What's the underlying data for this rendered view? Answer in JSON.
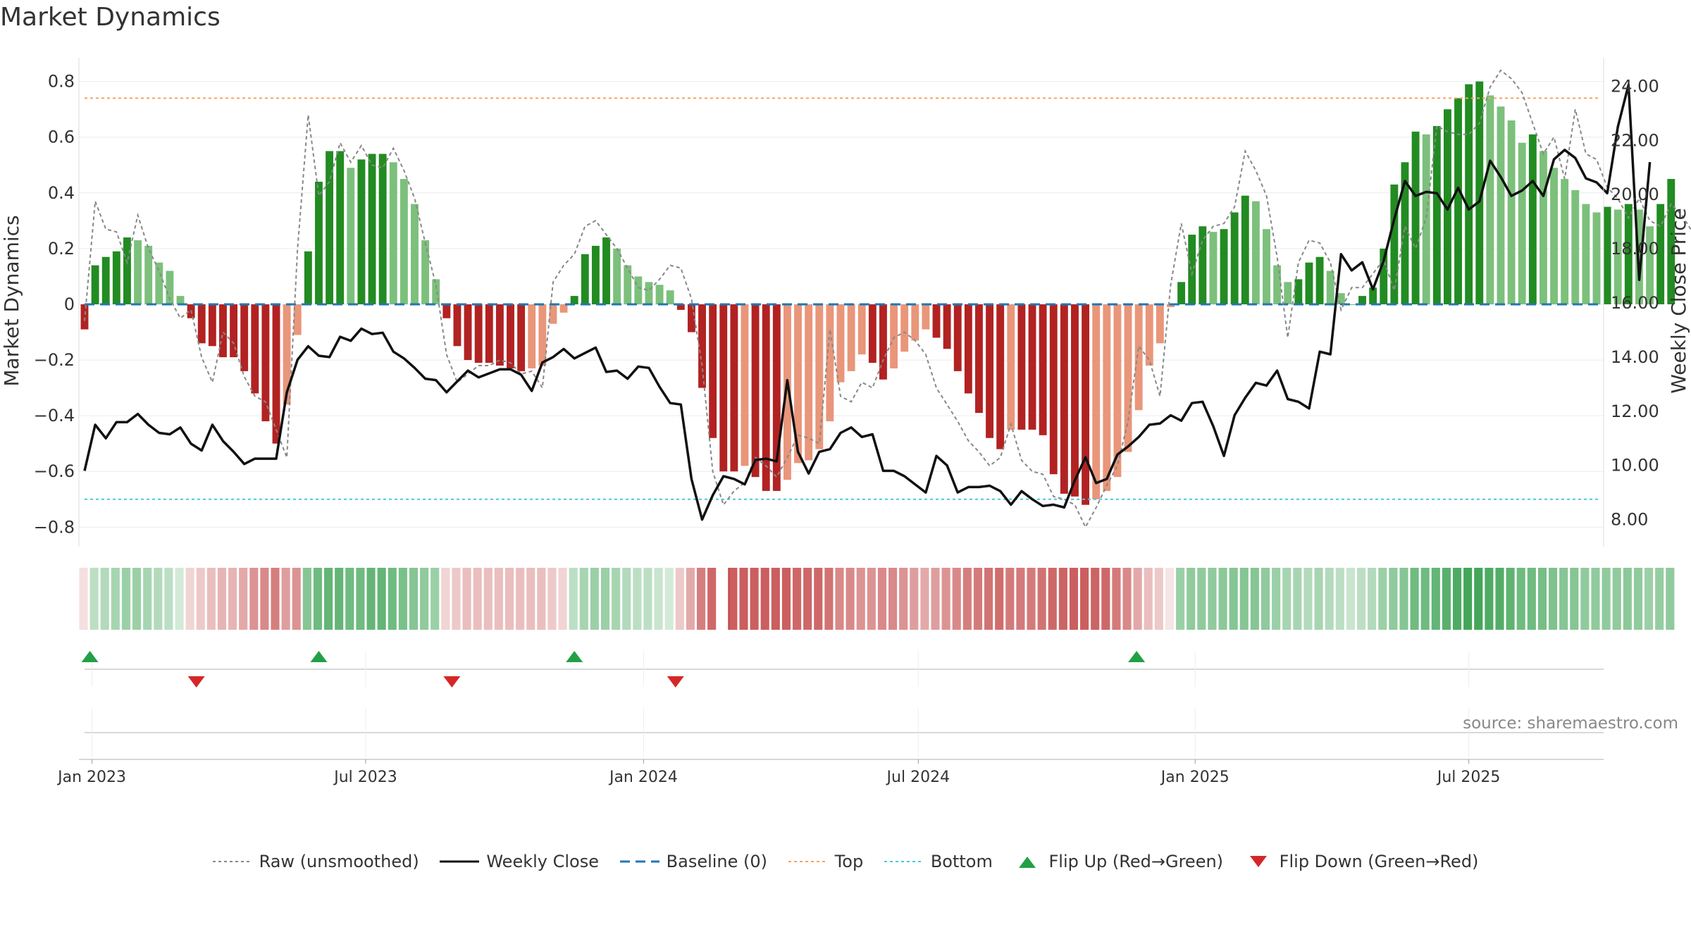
{
  "chart_data": {
    "type": "bar",
    "title": "Market Dynamics",
    "ylabel_left": "Market Dynamics",
    "ylabel_right": "Weekly Close Price",
    "y_left_range": [
      -0.87,
      0.88
    ],
    "y_right_range": [
      7.0,
      25.0
    ],
    "y_left_ticks": [
      "0.8",
      "0.6",
      "0.4",
      "0.2",
      "0",
      "−0.2",
      "−0.4",
      "−0.6",
      "−0.8"
    ],
    "y_right_ticks": [
      "24.00",
      "22.00",
      "20.00",
      "18.00",
      "16.00",
      "14.00",
      "12.00",
      "10.00",
      "8.00"
    ],
    "x_tick_labels": [
      "Jan 2023",
      "Jul 2023",
      "Jan 2024",
      "Jul 2024",
      "Jan 2025",
      "Jul 2025"
    ],
    "x_tick_positions_weeks": [
      0.7,
      26.4,
      52.5,
      78.3,
      104.3,
      130.0
    ],
    "top_level": 0.74,
    "bottom_level": -0.7,
    "baseline": 0,
    "weeks": 143,
    "series": [
      {
        "name": "Market Dynamics",
        "kind": "bar",
        "values": [
          -0.09,
          0.14,
          0.17,
          0.19,
          0.24,
          0.23,
          0.21,
          0.15,
          0.12,
          0.03,
          -0.05,
          -0.14,
          -0.15,
          -0.19,
          -0.19,
          -0.24,
          -0.32,
          -0.42,
          -0.5,
          -0.36,
          -0.11,
          0.19,
          0.44,
          0.55,
          0.55,
          0.49,
          0.52,
          0.54,
          0.54,
          0.51,
          0.45,
          0.36,
          0.23,
          0.09,
          -0.05,
          -0.15,
          -0.2,
          -0.21,
          -0.21,
          -0.22,
          -0.23,
          -0.24,
          -0.23,
          -0.22,
          -0.07,
          -0.03,
          0.03,
          0.18,
          0.21,
          0.24,
          0.2,
          0.14,
          0.1,
          0.08,
          0.07,
          0.05,
          -0.02,
          -0.1,
          -0.3,
          -0.48,
          -0.6,
          -0.6,
          -0.58,
          -0.62,
          -0.67,
          -0.67,
          -0.63,
          -0.57,
          -0.56,
          -0.52,
          -0.42,
          -0.28,
          -0.24,
          -0.18,
          -0.21,
          -0.27,
          -0.23,
          -0.17,
          -0.13,
          -0.09,
          -0.12,
          -0.16,
          -0.24,
          -0.32,
          -0.39,
          -0.48,
          -0.52,
          -0.45,
          -0.45,
          -0.45,
          -0.47,
          -0.61,
          -0.68,
          -0.69,
          -0.72,
          -0.7,
          -0.67,
          -0.62,
          -0.53,
          -0.38,
          -0.22,
          -0.14,
          -0.01,
          0.08,
          0.25,
          0.28,
          0.26,
          0.27,
          0.33,
          0.39,
          0.37,
          0.27,
          0.14,
          0.08,
          0.09,
          0.15,
          0.17,
          0.12,
          0.04,
          0.0,
          0.03,
          0.06,
          0.2,
          0.43,
          0.51,
          0.62,
          0.61,
          0.64,
          0.7,
          0.74,
          0.79,
          0.8,
          0.75,
          0.71,
          0.66,
          0.58,
          0.61,
          0.55,
          0.49,
          0.45,
          0.41,
          0.36,
          0.33,
          0.35,
          0.34,
          0.36,
          0.34,
          0.28,
          0.36,
          0.45
        ]
      },
      {
        "name": "Raw (unsmoothed)",
        "kind": "line",
        "values": [
          -0.06,
          0.37,
          0.27,
          0.26,
          0.15,
          0.32,
          0.2,
          0.12,
          0.02,
          -0.05,
          -0.02,
          -0.19,
          -0.28,
          -0.1,
          -0.14,
          -0.26,
          -0.33,
          -0.35,
          -0.45,
          -0.55,
          0.2,
          0.68,
          0.39,
          0.44,
          0.58,
          0.51,
          0.57,
          0.5,
          0.49,
          0.56,
          0.48,
          0.38,
          0.22,
          0.07,
          -0.18,
          -0.28,
          -0.25,
          -0.22,
          -0.22,
          -0.2,
          -0.21,
          -0.25,
          -0.24,
          -0.3,
          0.08,
          0.14,
          0.18,
          0.28,
          0.3,
          0.25,
          0.2,
          0.13,
          0.06,
          0.05,
          0.09,
          0.14,
          0.13,
          0.02,
          -0.22,
          -0.6,
          -0.72,
          -0.67,
          -0.64,
          -0.55,
          -0.58,
          -0.62,
          -0.55,
          -0.47,
          -0.48,
          -0.5,
          -0.09,
          -0.33,
          -0.35,
          -0.28,
          -0.3,
          -0.2,
          -0.12,
          -0.1,
          -0.13,
          -0.18,
          -0.3,
          -0.36,
          -0.42,
          -0.49,
          -0.53,
          -0.58,
          -0.55,
          -0.43,
          -0.56,
          -0.6,
          -0.61,
          -0.69,
          -0.7,
          -0.72,
          -0.8,
          -0.73,
          -0.65,
          -0.58,
          -0.42,
          -0.15,
          -0.2,
          -0.33,
          0.07,
          0.29,
          0.11,
          0.23,
          0.28,
          0.29,
          0.35,
          0.55,
          0.48,
          0.39,
          0.17,
          -0.12,
          0.15,
          0.23,
          0.22,
          0.15,
          -0.02,
          0.06,
          0.06,
          0.11,
          0.16,
          0.05,
          0.28,
          0.2,
          0.31,
          0.64,
          0.62,
          0.61,
          0.61,
          0.65,
          0.78,
          0.84,
          0.81,
          0.76,
          0.65,
          0.54,
          0.6,
          0.45,
          0.7,
          0.54,
          0.52,
          0.42,
          0.38,
          0.31,
          0.38,
          0.3,
          0.28,
          0.36,
          0.32,
          0.26,
          0.35,
          0.72
        ]
      },
      {
        "name": "Weekly Close",
        "kind": "line",
        "axis": "right",
        "values": [
          9.8,
          11.5,
          11.0,
          11.6,
          11.6,
          11.9,
          11.5,
          11.2,
          11.15,
          11.4,
          10.8,
          10.55,
          11.5,
          10.9,
          10.5,
          10.05,
          10.25,
          10.25,
          10.25,
          12.7,
          13.9,
          14.4,
          14.05,
          14.0,
          14.75,
          14.6,
          15.05,
          14.85,
          14.9,
          14.2,
          13.95,
          13.6,
          13.2,
          13.15,
          12.7,
          13.1,
          13.5,
          13.25,
          13.4,
          13.55,
          13.55,
          13.35,
          12.75,
          13.8,
          14.0,
          14.3,
          13.95,
          14.15,
          14.35,
          13.45,
          13.5,
          13.2,
          13.65,
          13.6,
          12.9,
          12.3,
          12.25,
          9.5,
          8.0,
          8.9,
          9.6,
          9.5,
          9.3,
          10.2,
          10.25,
          10.15,
          13.15,
          10.5,
          9.7,
          10.5,
          10.6,
          11.2,
          11.4,
          11.05,
          11.15,
          9.8,
          9.8,
          9.6,
          9.3,
          9.0,
          10.35,
          10.0,
          9.0,
          9.2,
          9.2,
          9.25,
          9.05,
          8.55,
          9.05,
          8.75,
          8.5,
          8.55,
          8.45,
          9.45,
          10.3,
          9.35,
          9.5,
          10.4,
          10.7,
          11.05,
          11.5,
          11.55,
          11.85,
          11.65,
          12.3,
          12.35,
          11.45,
          10.35,
          11.85,
          12.5,
          13.05,
          12.95,
          13.5,
          12.45,
          12.35,
          12.1,
          14.2,
          14.1,
          17.8,
          17.2,
          17.5,
          16.5,
          17.55,
          19.1,
          20.5,
          19.95,
          20.1,
          20.05,
          19.45,
          20.25,
          19.45,
          19.75,
          21.25,
          20.65,
          19.95,
          20.15,
          20.5,
          19.95,
          21.3,
          21.65,
          21.35,
          20.6,
          20.45,
          20.05,
          22.5,
          24.05,
          16.85,
          21.2
        ]
      }
    ],
    "color_band": {
      "name": "regime strip",
      "intensities": [
        0.15,
        0.3,
        0.35,
        0.4,
        0.45,
        0.45,
        0.4,
        0.35,
        0.3,
        0.2,
        0.2,
        0.25,
        0.3,
        0.35,
        0.35,
        0.4,
        0.5,
        0.55,
        0.6,
        0.45,
        0.5,
        0.55,
        0.65,
        0.7,
        0.7,
        0.65,
        0.65,
        0.7,
        0.7,
        0.65,
        0.6,
        0.55,
        0.5,
        0.45,
        0.2,
        0.25,
        0.3,
        0.3,
        0.3,
        0.3,
        0.3,
        0.3,
        0.3,
        0.3,
        0.25,
        0.2,
        0.3,
        0.4,
        0.45,
        0.45,
        0.4,
        0.35,
        0.3,
        0.3,
        0.25,
        0.2,
        0.25,
        0.4,
        0.6,
        0.7,
        0.75,
        0.75,
        0.75,
        0.75,
        0.75,
        0.75,
        0.75,
        0.7,
        0.7,
        0.7,
        0.65,
        0.55,
        0.55,
        0.5,
        0.5,
        0.55,
        0.55,
        0.5,
        0.45,
        0.4,
        0.45,
        0.5,
        0.55,
        0.6,
        0.62,
        0.65,
        0.68,
        0.62,
        0.62,
        0.62,
        0.65,
        0.7,
        0.72,
        0.75,
        0.75,
        0.72,
        0.7,
        0.62,
        0.55,
        0.4,
        0.3,
        0.25,
        0.12,
        0.45,
        0.5,
        0.5,
        0.5,
        0.52,
        0.55,
        0.55,
        0.55,
        0.5,
        0.45,
        0.4,
        0.4,
        0.35,
        0.4,
        0.35,
        0.3,
        0.25,
        0.3,
        0.35,
        0.45,
        0.5,
        0.55,
        0.65,
        0.65,
        0.7,
        0.75,
        0.8,
        0.85,
        0.85,
        0.8,
        0.78,
        0.72,
        0.65,
        0.65,
        0.62,
        0.58,
        0.55,
        0.55,
        0.5,
        0.5,
        0.5,
        0.5,
        0.52,
        0.5,
        0.45,
        0.48,
        0.5
      ],
      "gap_after_week": 59
    },
    "flips_up_weeks": [
      0.5,
      22,
      46,
      98.8
    ],
    "flips_down_weeks": [
      10.5,
      34.5,
      55.5
    ],
    "colors": {
      "bar_dark_green": "#228B22",
      "bar_light_green": "#7CC07C",
      "bar_dark_red": "#B22222",
      "bar_light_red": "#E9967A",
      "raw_line": "#888888",
      "close_line": "#111111",
      "baseline": "#1F77B4",
      "top": "#F4A460",
      "bottom": "#48C9D8",
      "flip_up": "#22A045",
      "flip_down": "#D62728"
    }
  },
  "source": "source: sharemaestro.com",
  "legend": {
    "raw": "Raw (unsmoothed)",
    "close": "Weekly Close",
    "baseline": "Baseline (0)",
    "top": "Top",
    "bottom": "Bottom",
    "flip_up": "Flip Up (Red→Green)",
    "flip_down": "Flip Down (Green→Red)"
  }
}
